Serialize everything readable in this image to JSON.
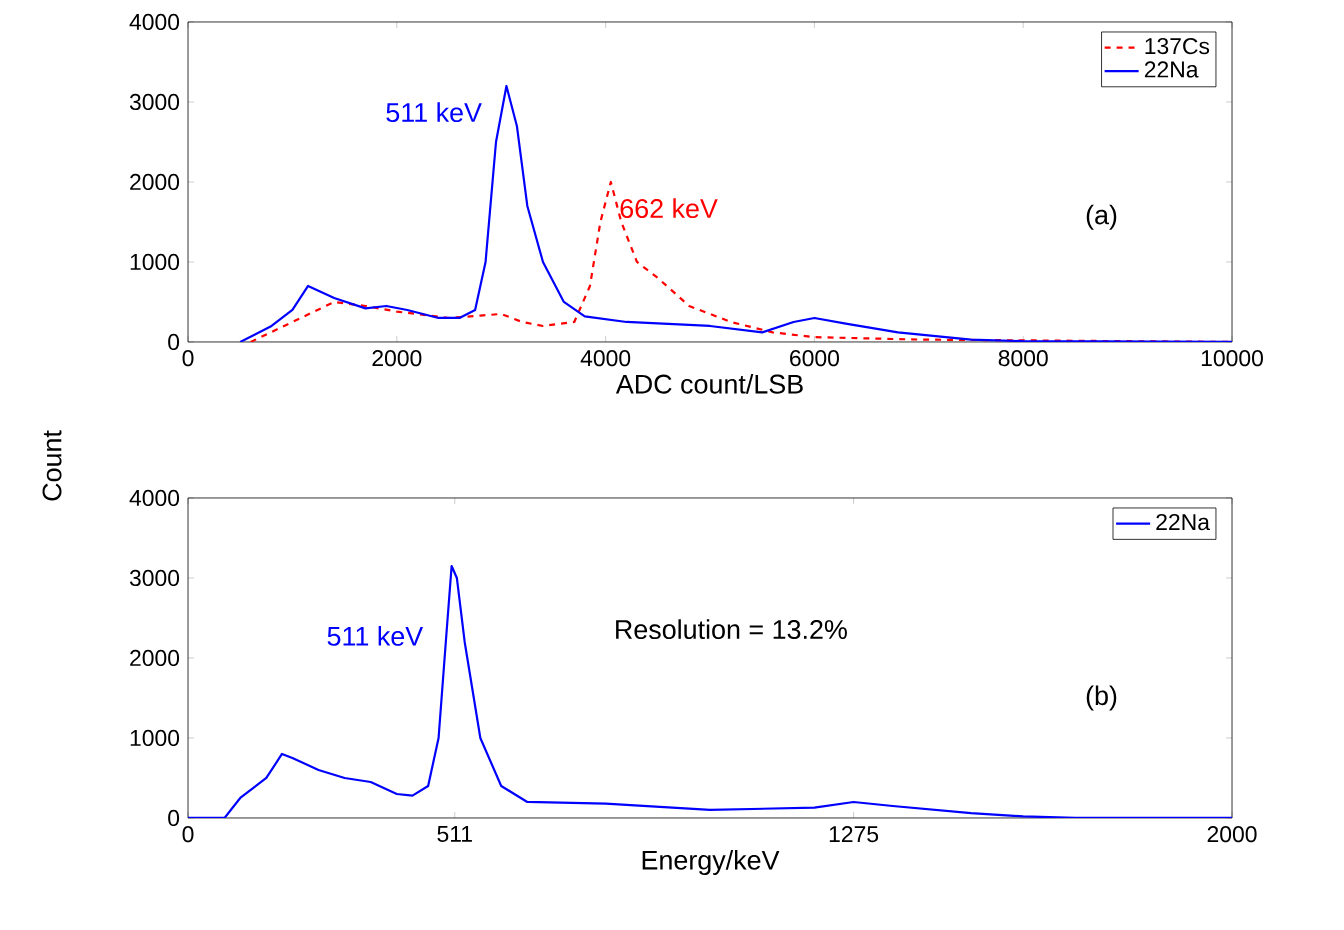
{
  "chart_data": [
    {
      "type": "line",
      "xlabel": "ADC count/LSB",
      "ylabel": "Count",
      "xlim": [
        0,
        10000
      ],
      "ylim": [
        0,
        4000
      ],
      "xticks": [
        0,
        2000,
        4000,
        6000,
        8000,
        10000
      ],
      "yticks": [
        0,
        1000,
        2000,
        3000,
        4000
      ],
      "legend": "top right",
      "grid": false,
      "series": [
        {
          "name": "137Cs",
          "color": "#ff0000",
          "line_style": "dashed",
          "x": [
            600,
            1000,
            1400,
            1700,
            2000,
            2500,
            2800,
            3000,
            3200,
            3400,
            3700,
            3850,
            3950,
            4050,
            4150,
            4300,
            4500,
            4800,
            5200,
            5600,
            6000,
            7000,
            8000,
            10000
          ],
          "values": [
            0,
            250,
            500,
            450,
            380,
            300,
            330,
            350,
            250,
            200,
            250,
            700,
            1500,
            2000,
            1500,
            1000,
            800,
            450,
            250,
            120,
            60,
            30,
            null,
            0
          ]
        },
        {
          "name": "22Na",
          "color": "#0000ff",
          "line_style": "solid",
          "x": [
            500,
            800,
            1000,
            1150,
            1400,
            1700,
            1900,
            2100,
            2400,
            2600,
            2750,
            2850,
            2950,
            3050,
            3150,
            3250,
            3400,
            3600,
            3800,
            4200,
            5000,
            5500,
            5800,
            6000,
            6300,
            6800,
            7500,
            8000,
            10000
          ],
          "values": [
            0,
            200,
            400,
            700,
            550,
            420,
            450,
            400,
            300,
            300,
            400,
            1000,
            2500,
            3200,
            2700,
            1700,
            1000,
            500,
            320,
            250,
            200,
            120,
            250,
            300,
            230,
            120,
            30,
            10,
            0
          ]
        }
      ],
      "annotations": [
        {
          "text": "511 keV",
          "x": 3050,
          "y": 3200
        },
        {
          "text": "662 keV",
          "x": 4050,
          "y": 2000
        },
        "(a)"
      ]
    },
    {
      "type": "line",
      "xlabel": "Energy/keV",
      "xlim": [
        0,
        2000
      ],
      "ylim": [
        0,
        4000
      ],
      "xticks": [
        0,
        511,
        1275,
        2000
      ],
      "yticks": [
        0,
        1000,
        2000,
        3000,
        4000
      ],
      "legend": "top right",
      "grid": false,
      "series": [
        {
          "name": "22Na",
          "color": "#0000ff",
          "line_style": "solid",
          "x": [
            0,
            70,
            100,
            150,
            180,
            200,
            250,
            300,
            350,
            400,
            430,
            460,
            480,
            495,
            505,
            515,
            530,
            560,
            600,
            650,
            800,
            1000,
            1200,
            1275,
            1350,
            1500,
            1600,
            1700,
            2000
          ],
          "values": [
            0,
            0,
            250,
            500,
            800,
            750,
            600,
            500,
            450,
            300,
            280,
            400,
            1000,
            2300,
            3150,
            3000,
            2200,
            1000,
            400,
            200,
            180,
            100,
            130,
            200,
            150,
            60,
            20,
            0,
            0
          ]
        }
      ],
      "annotations": [
        {
          "text": "511 keV",
          "x": 505,
          "y": 3150
        },
        "Resolution = 13.2%",
        "(b)"
      ]
    }
  ]
}
